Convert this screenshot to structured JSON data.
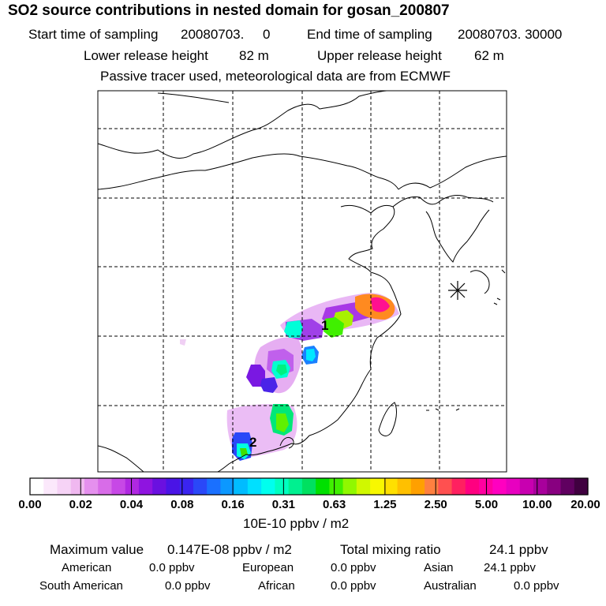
{
  "header": {
    "title": "SO2 source contributions in nested domain for gosan_200807",
    "start_label": "Start time of sampling",
    "start_value": "20080703.     0",
    "end_label": "End time of sampling",
    "end_value": "20080703. 30000",
    "lower_label": "Lower release height",
    "lower_value": "82 m",
    "upper_label": "Upper release height",
    "upper_value": "62 m",
    "note": "Passive tracer used, meteorological data are from ECMWF"
  },
  "map": {
    "markers": [
      {
        "label": "1"
      },
      {
        "label": "2"
      }
    ],
    "receptor_symbol": "star-icon"
  },
  "colorbar": {
    "tick_labels": [
      "0.00",
      "0.02",
      "0.04",
      "0.08",
      "0.16",
      "0.31",
      "0.63",
      "1.25",
      "2.50",
      "5.00",
      "10.00",
      "20.00"
    ],
    "unit": "10E-10 ppbv / m2",
    "colors": [
      "#ffffff",
      "#fbe8fb",
      "#f6d3f6",
      "#f0b8f0",
      "#e590ee",
      "#d86ce8",
      "#c748e6",
      "#b028e2",
      "#8f14e0",
      "#6a10e0",
      "#4a14e6",
      "#3a24f0",
      "#2a48f8",
      "#1a70ff",
      "#0c98ff",
      "#00bcff",
      "#00e0ff",
      "#00ffee",
      "#00ffc0",
      "#00f090",
      "#00e060",
      "#00e000",
      "#40f000",
      "#90f800",
      "#d0f800",
      "#f8f800",
      "#ffe000",
      "#ffc000",
      "#ffa000",
      "#ff8040",
      "#ff5050",
      "#ff2060",
      "#ff0080",
      "#ff00a0",
      "#ff00c0",
      "#e800c0",
      "#c800b0",
      "#a8009c",
      "#880080",
      "#600060",
      "#400040"
    ]
  },
  "summary": {
    "max_label": "Maximum value",
    "max_value": "0.147E-08 ppbv / m2",
    "total_label": "Total mixing ratio",
    "total_value": "24.1 ppbv",
    "regions": [
      {
        "name": "American",
        "value": "0.0 ppbv"
      },
      {
        "name": "European",
        "value": "0.0 ppbv"
      },
      {
        "name": "Asian",
        "value": "24.1 ppbv"
      },
      {
        "name": "South American",
        "value": "0.0 ppbv"
      },
      {
        "name": "African",
        "value": "0.0 ppbv"
      },
      {
        "name": "Australian",
        "value": "0.0 ppbv"
      }
    ]
  },
  "chart_data": {
    "type": "heatmap",
    "title": "SO2 source contributions in nested domain for gosan_200807",
    "colorbar_levels": [
      0.0,
      0.02,
      0.04,
      0.08,
      0.16,
      0.31,
      0.63,
      1.25,
      2.5,
      5.0,
      10.0,
      20.0
    ],
    "colorbar_unit": "10E-10 ppbv / m2",
    "max_value": "0.147E-08 ppbv / m2",
    "grid": true
  }
}
